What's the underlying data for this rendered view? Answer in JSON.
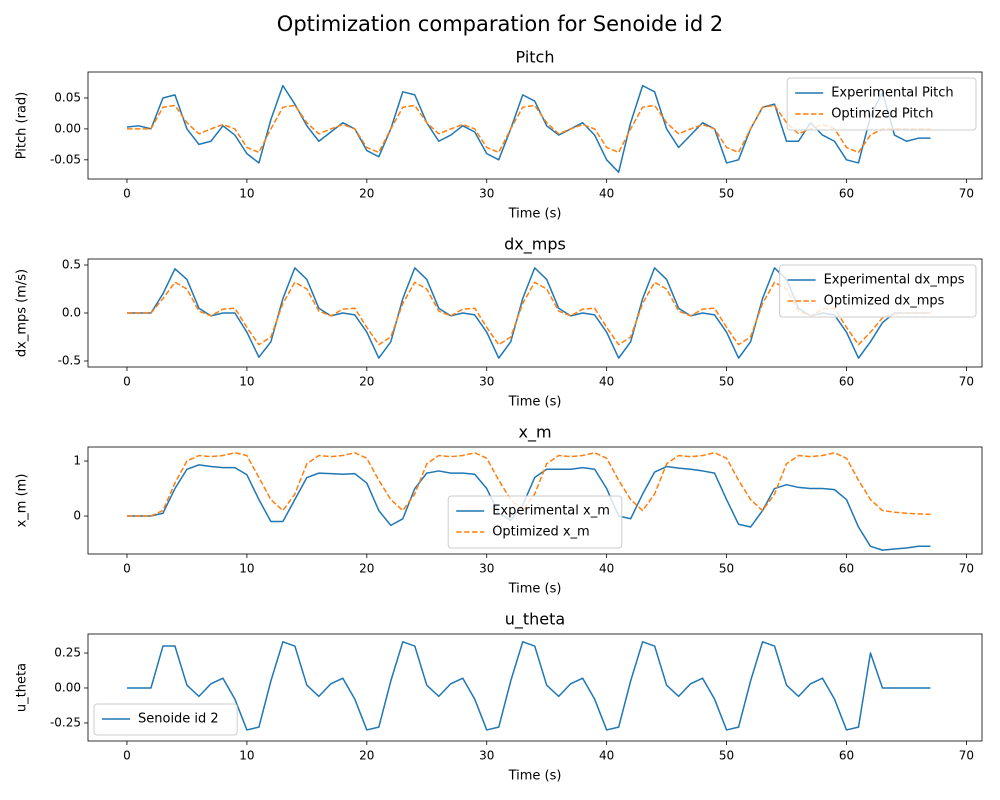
{
  "title": "Optimization comparation for Senoide id 2",
  "chart_data": [
    {
      "type": "line",
      "title": "Pitch",
      "xlabel": "Time (s)",
      "ylabel": "Pitch (rad)",
      "legend": "upper right",
      "xlim": [
        -3.25,
        71.3
      ],
      "xticks": [
        0,
        10,
        20,
        30,
        40,
        50,
        60,
        70
      ],
      "ylim": [
        -0.081,
        0.092
      ],
      "yticks": [
        -0.05,
        {
          "value": 0,
          "label": "0.00"
        },
        0.05
      ],
      "x": [
        0,
        1,
        2,
        3,
        4,
        5,
        6,
        7,
        8,
        9,
        10,
        11,
        12,
        13,
        14,
        15,
        16,
        17,
        18,
        19,
        20,
        21,
        22,
        23,
        24,
        25,
        26,
        27,
        28,
        29,
        30,
        31,
        32,
        33,
        34,
        35,
        36,
        37,
        38,
        39,
        40,
        41,
        42,
        43,
        44,
        45,
        46,
        47,
        48,
        49,
        50,
        51,
        52,
        53,
        54,
        55,
        56,
        57,
        58,
        59,
        60,
        61,
        62,
        63,
        64,
        65,
        66,
        67
      ],
      "series": [
        {
          "name": "Experimental Pitch",
          "color": "#1f77b4",
          "dashed": false,
          "values": [
            0.003,
            0.005,
            0,
            0.05,
            0.055,
            0,
            -0.025,
            -0.02,
            0.005,
            -0.01,
            -0.04,
            -0.055,
            0.015,
            0.07,
            0.04,
            0.005,
            -0.02,
            -0.005,
            0.01,
            0,
            -0.035,
            -0.045,
            0,
            0.06,
            0.055,
            0.01,
            -0.02,
            -0.01,
            0.005,
            -0.005,
            -0.04,
            -0.05,
            0,
            0.055,
            0.045,
            0.005,
            -0.01,
            0,
            0.01,
            -0.01,
            -0.05,
            -0.07,
            0.01,
            0.07,
            0.06,
            0,
            -0.03,
            -0.01,
            0.01,
            0,
            -0.055,
            -0.05,
            0,
            0.035,
            0.04,
            -0.02,
            -0.02,
            0.01,
            -0.01,
            -0.02,
            -0.05,
            -0.055,
            0.02,
            0.06,
            -0.01,
            -0.02,
            -0.015,
            -0.015
          ]
        },
        {
          "name": "Optimized Pitch",
          "color": "#ff7f0e",
          "dashed": true,
          "values": [
            0,
            0,
            0,
            0.035,
            0.038,
            0.01,
            -0.008,
            0,
            0.007,
            0,
            -0.03,
            -0.038,
            0,
            0.035,
            0.038,
            0.01,
            -0.008,
            0,
            0.007,
            0,
            -0.03,
            -0.038,
            0,
            0.035,
            0.038,
            0.01,
            -0.008,
            0,
            0.007,
            0,
            -0.03,
            -0.038,
            0,
            0.035,
            0.038,
            0.01,
            -0.008,
            0,
            0.007,
            0,
            -0.03,
            -0.038,
            0,
            0.035,
            0.038,
            0.01,
            -0.008,
            0,
            0.007,
            0,
            -0.03,
            -0.038,
            0,
            0.035,
            0.038,
            0.01,
            -0.008,
            0,
            0.007,
            0,
            -0.03,
            -0.038,
            -0.01,
            0,
            0,
            0,
            0,
            0
          ]
        }
      ]
    },
    {
      "type": "line",
      "title": "dx_mps",
      "xlabel": "Time (s)",
      "ylabel": "dx_mps (m/s)",
      "legend": "upper right",
      "xlim": [
        -3.25,
        71.3
      ],
      "xticks": [
        0,
        10,
        20,
        30,
        40,
        50,
        60,
        70
      ],
      "ylim": [
        -0.5625,
        0.5625
      ],
      "yticks": [
        -0.5,
        {
          "value": 0,
          "label": "0.0"
        },
        0.5
      ],
      "x": [
        0,
        1,
        2,
        3,
        4,
        5,
        6,
        7,
        8,
        9,
        10,
        11,
        12,
        13,
        14,
        15,
        16,
        17,
        18,
        19,
        20,
        21,
        22,
        23,
        24,
        25,
        26,
        27,
        28,
        29,
        30,
        31,
        32,
        33,
        34,
        35,
        36,
        37,
        38,
        39,
        40,
        41,
        42,
        43,
        44,
        45,
        46,
        47,
        48,
        49,
        50,
        51,
        52,
        53,
        54,
        55,
        56,
        57,
        58,
        59,
        60,
        61,
        62,
        63,
        64,
        65,
        66,
        67
      ],
      "series": [
        {
          "name": "Experimental dx_mps",
          "color": "#1f77b4",
          "dashed": false,
          "values": [
            0,
            0,
            0,
            0.2,
            0.46,
            0.35,
            0.05,
            -0.03,
            0,
            0,
            -0.2,
            -0.46,
            -0.3,
            0.15,
            0.47,
            0.35,
            0.05,
            -0.03,
            0,
            -0.02,
            -0.2,
            -0.47,
            -0.3,
            0.15,
            0.47,
            0.35,
            0.05,
            -0.03,
            0,
            -0.02,
            -0.2,
            -0.47,
            -0.3,
            0.15,
            0.47,
            0.35,
            0.05,
            -0.03,
            0,
            -0.02,
            -0.2,
            -0.47,
            -0.3,
            0.15,
            0.47,
            0.35,
            0.05,
            -0.03,
            0,
            -0.02,
            -0.2,
            -0.47,
            -0.3,
            0.15,
            0.47,
            0.35,
            0.05,
            -0.03,
            0,
            -0.02,
            -0.2,
            -0.47,
            -0.3,
            -0.1,
            0,
            0,
            0,
            0
          ]
        },
        {
          "name": "Optimized dx_mps",
          "color": "#ff7f0e",
          "dashed": true,
          "values": [
            0,
            0,
            0,
            0.15,
            0.32,
            0.25,
            0.02,
            -0.03,
            0.04,
            0.05,
            -0.15,
            -0.33,
            -0.25,
            0.1,
            0.32,
            0.25,
            0.02,
            -0.03,
            0.04,
            0.05,
            -0.15,
            -0.33,
            -0.25,
            0.1,
            0.32,
            0.25,
            0.02,
            -0.03,
            0.04,
            0.05,
            -0.15,
            -0.33,
            -0.25,
            0.1,
            0.32,
            0.25,
            0.02,
            -0.03,
            0.04,
            0.05,
            -0.15,
            -0.33,
            -0.25,
            0.1,
            0.32,
            0.25,
            0.02,
            -0.03,
            0.04,
            0.05,
            -0.15,
            -0.33,
            -0.25,
            0.1,
            0.32,
            0.25,
            0.02,
            -0.03,
            0.04,
            0.05,
            -0.15,
            -0.33,
            -0.2,
            -0.05,
            -0.01,
            0,
            0,
            0
          ]
        }
      ]
    },
    {
      "type": "line",
      "title": "x_m",
      "xlabel": "Time (s)",
      "ylabel": "x_m (m)",
      "legend": "lower center",
      "xlim": [
        -3.25,
        71.3
      ],
      "xticks": [
        0,
        10,
        20,
        30,
        40,
        50,
        60,
        70
      ],
      "ylim": [
        -0.69,
        1.255
      ],
      "yticks": [
        0,
        1
      ],
      "x": [
        0,
        1,
        2,
        3,
        4,
        5,
        6,
        7,
        8,
        9,
        10,
        11,
        12,
        13,
        14,
        15,
        16,
        17,
        18,
        19,
        20,
        21,
        22,
        23,
        24,
        25,
        26,
        27,
        28,
        29,
        30,
        31,
        32,
        33,
        34,
        35,
        36,
        37,
        38,
        39,
        40,
        41,
        42,
        43,
        44,
        45,
        46,
        47,
        48,
        49,
        50,
        51,
        52,
        53,
        54,
        55,
        56,
        57,
        58,
        59,
        60,
        61,
        62,
        63,
        64,
        65,
        66,
        67
      ],
      "series": [
        {
          "name": "Experimental x_m",
          "color": "#1f77b4",
          "dashed": false,
          "values": [
            0,
            0,
            0,
            0.05,
            0.5,
            0.85,
            0.93,
            0.9,
            0.88,
            0.88,
            0.75,
            0.3,
            -0.1,
            -0.1,
            0.3,
            0.7,
            0.78,
            0.77,
            0.76,
            0.77,
            0.6,
            0.1,
            -0.17,
            -0.05,
            0.5,
            0.78,
            0.82,
            0.78,
            0.78,
            0.76,
            0.5,
            0.05,
            -0.08,
            0.2,
            0.7,
            0.85,
            0.85,
            0.85,
            0.88,
            0.85,
            0.5,
            0,
            -0.05,
            0.4,
            0.8,
            0.9,
            0.87,
            0.85,
            0.82,
            0.78,
            0.3,
            -0.15,
            -0.2,
            0.1,
            0.5,
            0.57,
            0.52,
            0.5,
            0.5,
            0.48,
            0.3,
            -0.2,
            -0.55,
            -0.62,
            -0.6,
            -0.58,
            -0.55,
            -0.55
          ]
        },
        {
          "name": "Optimized x_m",
          "color": "#ff7f0e",
          "dashed": true,
          "values": [
            0,
            0,
            0,
            0.1,
            0.6,
            1,
            1.1,
            1.08,
            1.1,
            1.15,
            1.1,
            0.7,
            0.3,
            0.1,
            0.4,
            0.95,
            1.1,
            1.08,
            1.1,
            1.15,
            1.05,
            0.65,
            0.3,
            0.1,
            0.4,
            0.95,
            1.1,
            1.08,
            1.1,
            1.15,
            1.05,
            0.65,
            0.3,
            0.1,
            0.4,
            0.95,
            1.1,
            1.08,
            1.1,
            1.15,
            1.05,
            0.65,
            0.3,
            0.1,
            0.4,
            0.95,
            1.1,
            1.08,
            1.1,
            1.15,
            1.05,
            0.65,
            0.3,
            0.1,
            0.4,
            0.95,
            1.1,
            1.08,
            1.1,
            1.15,
            1.05,
            0.65,
            0.3,
            0.1,
            0.07,
            0.05,
            0.04,
            0.03
          ]
        }
      ]
    },
    {
      "type": "line",
      "title": "u_theta",
      "xlabel": "Time (s)",
      "ylabel": "u_theta",
      "legend": "lower left",
      "xlim": [
        -3.25,
        71.3
      ],
      "xticks": [
        0,
        10,
        20,
        30,
        40,
        50,
        60,
        70
      ],
      "ylim": [
        -0.379,
        0.386
      ],
      "yticks": [
        -0.25,
        {
          "value": 0,
          "label": "0.00"
        },
        0.25
      ],
      "x": [
        0,
        1,
        2,
        3,
        4,
        5,
        6,
        7,
        8,
        9,
        10,
        11,
        12,
        13,
        14,
        15,
        16,
        17,
        18,
        19,
        20,
        21,
        22,
        23,
        24,
        25,
        26,
        27,
        28,
        29,
        30,
        31,
        32,
        33,
        34,
        35,
        36,
        37,
        38,
        39,
        40,
        41,
        42,
        43,
        44,
        45,
        46,
        47,
        48,
        49,
        50,
        51,
        52,
        53,
        54,
        55,
        56,
        57,
        58,
        59,
        60,
        61,
        62,
        63,
        64,
        65,
        66,
        67
      ],
      "series": [
        {
          "name": "Senoide id 2",
          "color": "#1f77b4",
          "dashed": false,
          "values": [
            0,
            0,
            0,
            0.3,
            0.3,
            0.02,
            -0.06,
            0.03,
            0.07,
            -0.08,
            -0.3,
            -0.28,
            0.05,
            0.33,
            0.3,
            0.02,
            -0.06,
            0.03,
            0.07,
            -0.08,
            -0.3,
            -0.28,
            0.05,
            0.33,
            0.3,
            0.02,
            -0.06,
            0.03,
            0.07,
            -0.08,
            -0.3,
            -0.28,
            0.05,
            0.33,
            0.3,
            0.02,
            -0.06,
            0.03,
            0.07,
            -0.08,
            -0.3,
            -0.28,
            0.05,
            0.33,
            0.3,
            0.02,
            -0.06,
            0.03,
            0.07,
            -0.08,
            -0.3,
            -0.28,
            0.05,
            0.33,
            0.3,
            0.02,
            -0.06,
            0.03,
            0.07,
            -0.08,
            -0.3,
            -0.28,
            0.25,
            0,
            0,
            0,
            0,
            0
          ]
        }
      ]
    }
  ]
}
